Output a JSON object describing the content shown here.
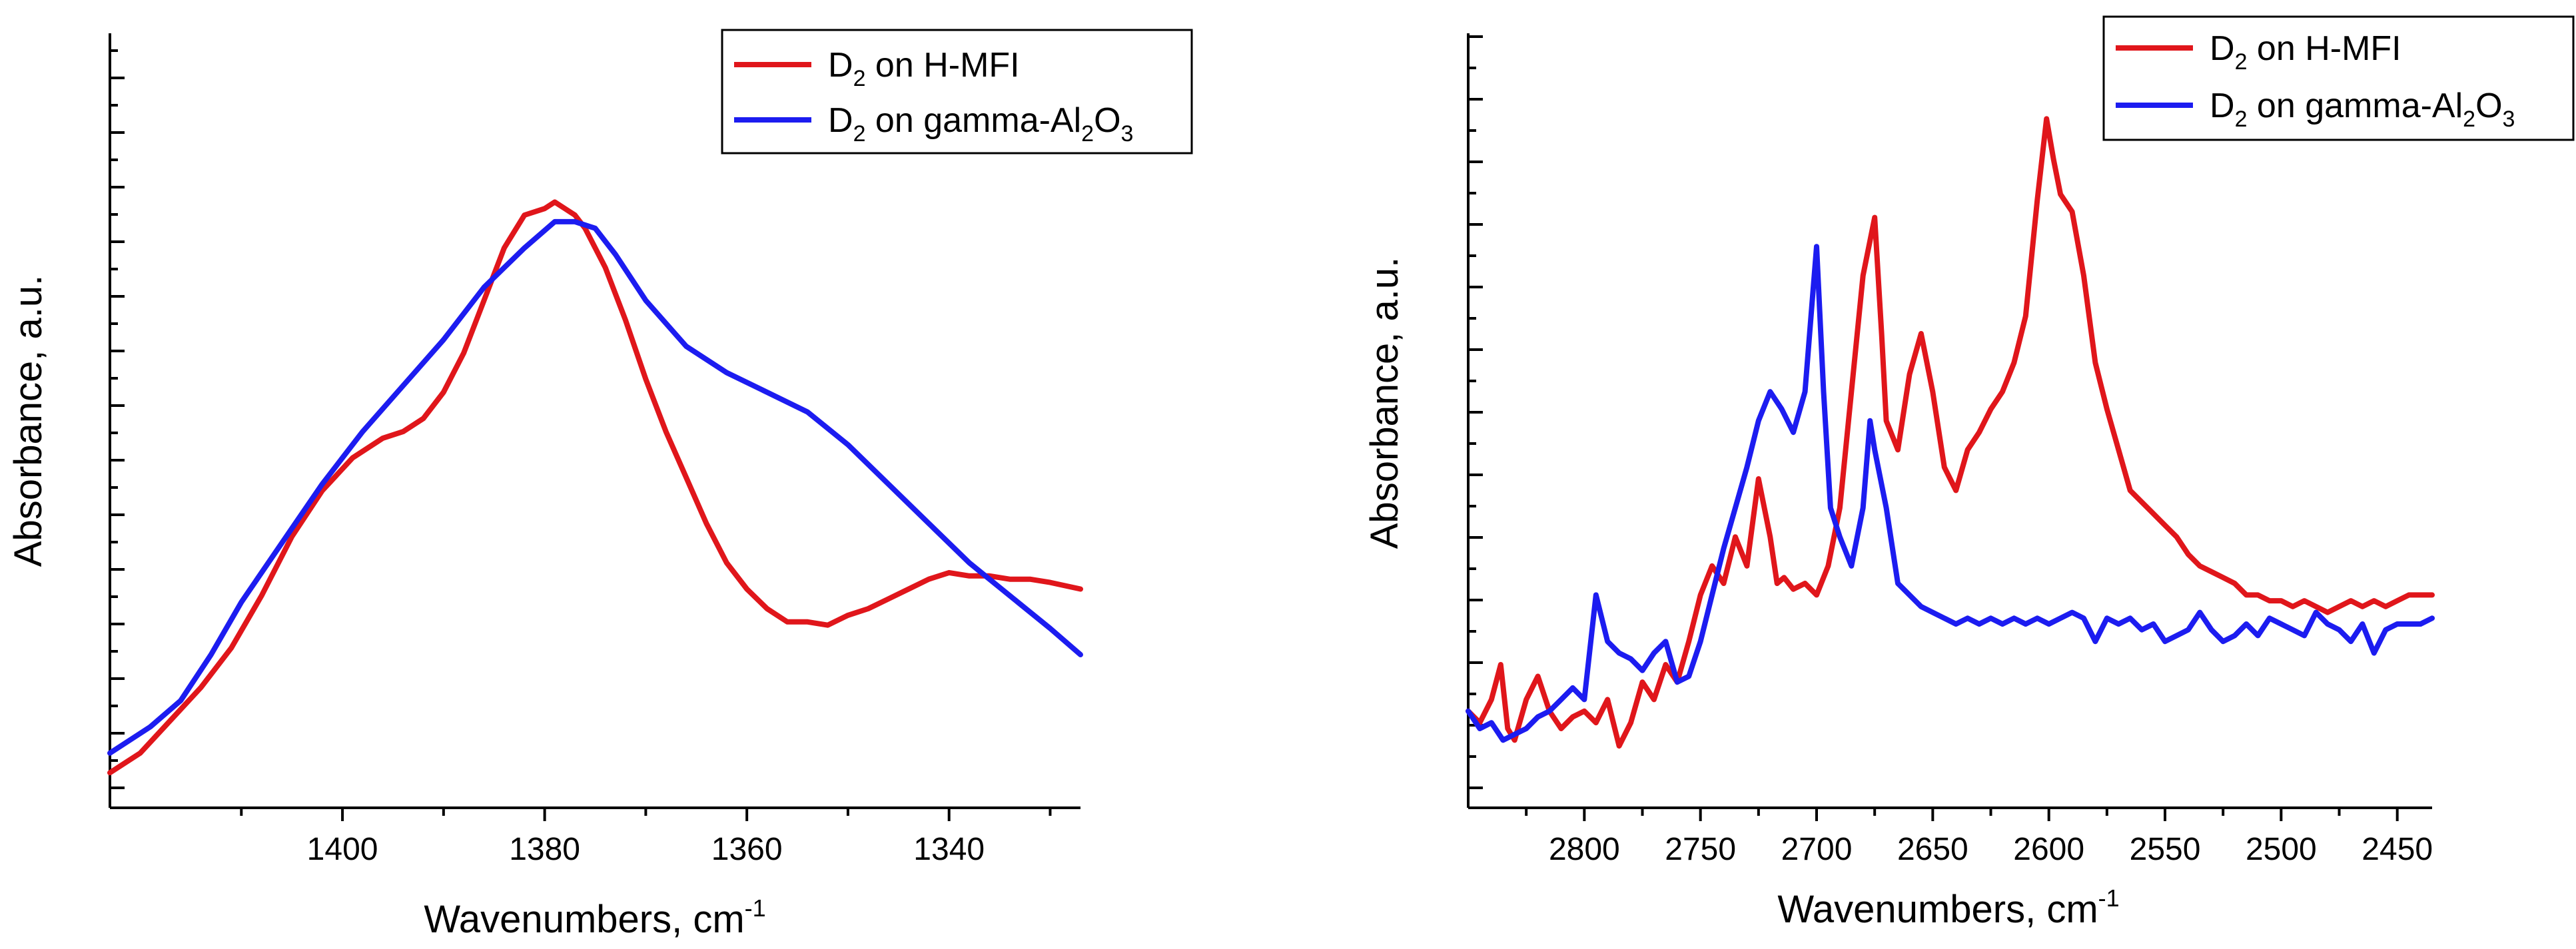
{
  "chart_data": [
    {
      "type": "line",
      "title": "",
      "xlabel": "Wavenumbers, cm",
      "xlabel_sup": "-1",
      "ylabel": "Absorbance, a.u.",
      "xlim": [
        1423,
        1327
      ],
      "ylim": [
        0,
        100
      ],
      "x_ticks": [
        1400,
        1380,
        1360,
        1340
      ],
      "legend_position": "top-right",
      "series": [
        {
          "name": "D2 on H-MFI",
          "legend": {
            "main": "D",
            "sub": "2",
            "rest": " on H-MFI"
          },
          "color": "#e0161b",
          "x": [
            1423,
            1420,
            1417,
            1414,
            1411,
            1408,
            1405,
            1402,
            1399,
            1396,
            1394,
            1392,
            1390,
            1388,
            1386,
            1384,
            1382,
            1380,
            1379,
            1378,
            1377,
            1376,
            1374,
            1372,
            1370,
            1368,
            1366,
            1364,
            1362,
            1360,
            1358,
            1356,
            1354,
            1352,
            1350,
            1348,
            1346,
            1344,
            1342,
            1340,
            1338,
            1336,
            1334,
            1332,
            1330,
            1327
          ],
          "y": [
            2,
            5,
            10,
            15,
            21,
            29,
            38,
            45,
            50,
            53,
            54,
            56,
            60,
            66,
            74,
            82,
            87,
            88,
            89,
            88,
            87,
            85,
            79,
            71,
            62,
            54,
            47,
            40,
            34,
            30,
            27,
            25,
            25,
            24.5,
            26,
            27,
            28.5,
            30,
            31.5,
            32.5,
            32,
            32,
            31.5,
            31.5,
            31,
            30
          ]
        },
        {
          "name": "D2 on gamma-Al2O3",
          "legend": {
            "main": "D",
            "sub": "2",
            "rest": " on gamma-Al",
            "sub2": "2",
            "rest2": "O",
            "sub3": "3"
          },
          "color": "#1c1cf0",
          "x": [
            1423,
            1419,
            1416,
            1413,
            1410,
            1406,
            1402,
            1398,
            1394,
            1390,
            1386,
            1382,
            1379,
            1377,
            1375,
            1373,
            1370,
            1366,
            1362,
            1358,
            1354,
            1350,
            1346,
            1342,
            1338,
            1334,
            1330,
            1327
          ],
          "y": [
            5,
            9,
            13,
            20,
            28,
            37,
            46,
            54,
            61,
            68,
            76,
            82,
            86,
            86,
            85,
            81,
            74,
            67,
            63,
            60,
            57,
            52,
            46,
            40,
            34,
            29,
            24,
            20
          ]
        }
      ]
    },
    {
      "type": "line",
      "title": "",
      "xlabel": "Wavenumbers, cm",
      "xlabel_sup": "-1",
      "ylabel": "Absorbance, a.u.",
      "xlim": [
        2850,
        2435
      ],
      "ylim": [
        0,
        100
      ],
      "x_ticks": [
        2800,
        2750,
        2700,
        2650,
        2600,
        2550,
        2500,
        2450
      ],
      "legend_position": "top-right",
      "series": [
        {
          "name": "D2 on H-MFI",
          "legend": {
            "main": "D",
            "sub": "2",
            "rest": " on H-MFI"
          },
          "color": "#e0161b",
          "x": [
            2850,
            2845,
            2840,
            2836,
            2833,
            2830,
            2825,
            2820,
            2815,
            2810,
            2805,
            2800,
            2795,
            2790,
            2785,
            2780,
            2775,
            2770,
            2765,
            2760,
            2755,
            2750,
            2745,
            2740,
            2735,
            2730,
            2725,
            2720,
            2717,
            2714,
            2710,
            2705,
            2700,
            2695,
            2690,
            2685,
            2680,
            2675,
            2672,
            2670,
            2665,
            2660,
            2655,
            2650,
            2645,
            2640,
            2635,
            2630,
            2625,
            2620,
            2615,
            2610,
            2605,
            2601,
            2598,
            2595,
            2590,
            2585,
            2580,
            2575,
            2570,
            2565,
            2560,
            2555,
            2550,
            2545,
            2540,
            2535,
            2530,
            2525,
            2520,
            2515,
            2510,
            2505,
            2500,
            2495,
            2490,
            2485,
            2480,
            2475,
            2470,
            2465,
            2460,
            2455,
            2450,
            2445,
            2440,
            2435
          ],
          "y": [
            10,
            8,
            12,
            18,
            7,
            5,
            12,
            16,
            10,
            7,
            9,
            10,
            8,
            12,
            4,
            8,
            15,
            12,
            18,
            15,
            22,
            30,
            35,
            32,
            40,
            35,
            50,
            40,
            32,
            33,
            31,
            32,
            30,
            35,
            45,
            65,
            85,
            95,
            75,
            60,
            55,
            68,
            75,
            65,
            52,
            48,
            55,
            58,
            62,
            65,
            70,
            78,
            98,
            112,
            105,
            99,
            96,
            85,
            70,
            62,
            55,
            48,
            46,
            44,
            42,
            40,
            37,
            35,
            34,
            33,
            32,
            30,
            30,
            29,
            29,
            28,
            29,
            28,
            27,
            28,
            29,
            28,
            29,
            28,
            29,
            30,
            30,
            30
          ]
        },
        {
          "name": "D2 on gamma-Al2O3",
          "legend": {
            "main": "D",
            "sub": "2",
            "rest": " on gamma-Al",
            "sub2": "2",
            "rest2": "O",
            "sub3": "3"
          },
          "color": "#1c1cf0",
          "x": [
            2850,
            2845,
            2840,
            2835,
            2830,
            2825,
            2820,
            2815,
            2810,
            2805,
            2800,
            2795,
            2790,
            2785,
            2780,
            2775,
            2770,
            2765,
            2760,
            2755,
            2750,
            2745,
            2740,
            2735,
            2730,
            2725,
            2720,
            2715,
            2710,
            2705,
            2702,
            2700,
            2697,
            2694,
            2690,
            2685,
            2680,
            2677,
            2675,
            2670,
            2665,
            2660,
            2655,
            2650,
            2645,
            2640,
            2635,
            2630,
            2625,
            2620,
            2615,
            2610,
            2605,
            2600,
            2595,
            2590,
            2585,
            2580,
            2575,
            2570,
            2565,
            2560,
            2555,
            2550,
            2545,
            2540,
            2535,
            2530,
            2525,
            2520,
            2515,
            2510,
            2505,
            2500,
            2495,
            2490,
            2485,
            2480,
            2475,
            2470,
            2465,
            2460,
            2455,
            2450,
            2445,
            2440,
            2435
          ],
          "y": [
            10,
            7,
            8,
            5,
            6,
            7,
            9,
            10,
            12,
            14,
            12,
            30,
            22,
            20,
            19,
            17,
            20,
            22,
            15,
            16,
            22,
            30,
            38,
            45,
            52,
            60,
            65,
            62,
            58,
            65,
            80,
            90,
            65,
            45,
            40,
            35,
            45,
            60,
            55,
            45,
            32,
            30,
            28,
            27,
            26,
            25,
            26,
            25,
            26,
            25,
            26,
            25,
            26,
            25,
            26,
            27,
            26,
            22,
            26,
            25,
            26,
            24,
            25,
            22,
            23,
            24,
            27,
            24,
            22,
            23,
            25,
            23,
            26,
            25,
            24,
            23,
            27,
            25,
            24,
            22,
            25,
            20,
            24,
            25,
            25,
            25,
            26
          ]
        }
      ]
    }
  ]
}
